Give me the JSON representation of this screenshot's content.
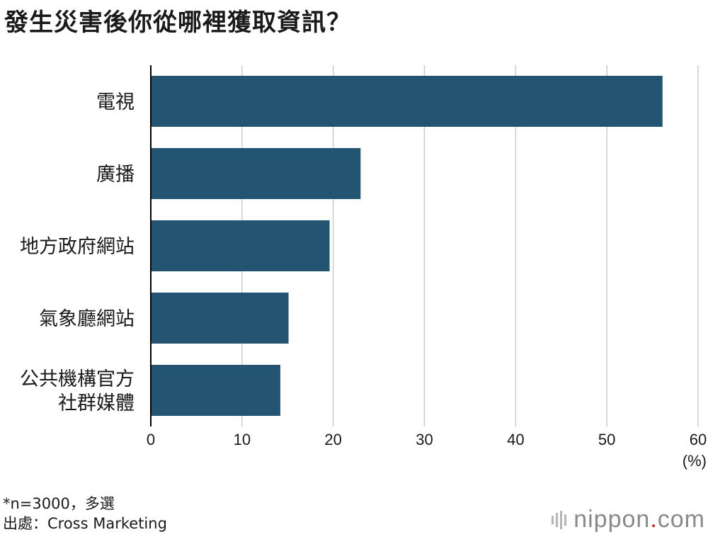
{
  "header": {
    "title": "發生災害後你從哪裡獲取資訊？"
  },
  "chart_data": {
    "type": "bar",
    "orientation": "horizontal",
    "title": "發生災害後你從哪裡獲取資訊？",
    "categories": [
      "電視",
      "廣播",
      "地方政府網站",
      "氣象廳網站",
      "公共機構官方\n社群媒體"
    ],
    "values": [
      56.1,
      23.0,
      19.6,
      15.1,
      14.2
    ],
    "xlim": [
      0,
      60
    ],
    "xticks": [
      "0",
      "10",
      "20",
      "30",
      "40",
      "50",
      "60"
    ],
    "unit": "(%)",
    "grid": true,
    "bar_color": "#235573"
  },
  "footer": {
    "note": "*n=3000，多選",
    "source": "出處：Cross Marketing",
    "logo_main": "nippon",
    "logo_dot": ".",
    "logo_suffix": "com"
  },
  "colors": {
    "bar": "#235573",
    "grid": "#cccccc",
    "axis": "#000000",
    "logo_dot": "#e60012",
    "logo_text": "#8a8a8a"
  }
}
